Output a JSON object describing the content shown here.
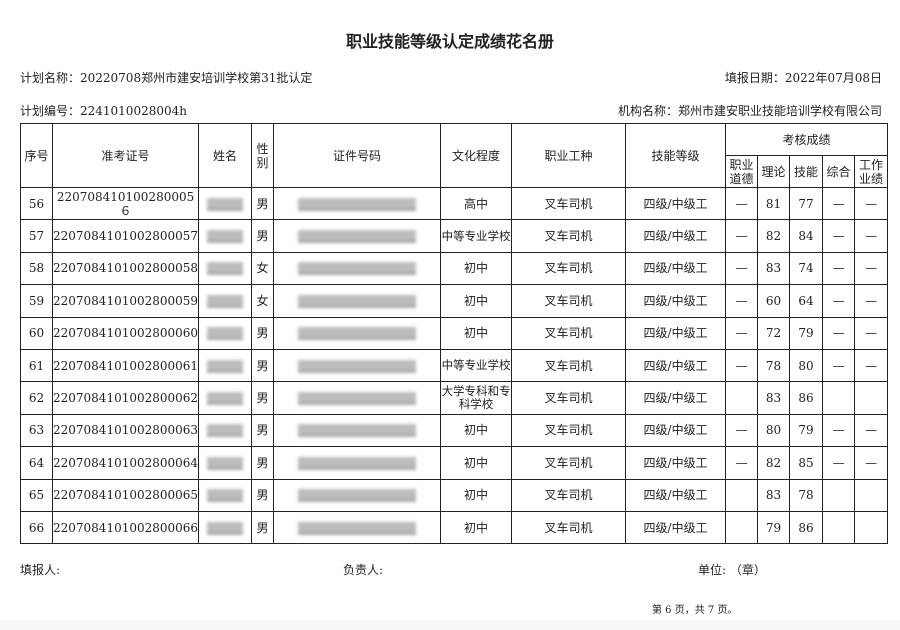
{
  "title": "职业技能等级认定成绩花名册",
  "plan_name": "计划名称：20220708郑州市建安培训学校第31批认定",
  "fill_date": "填报日期：2022年07月08日",
  "plan_number": "计划编号：2241010028004h",
  "org_name": "机构名称：郑州市建安职业技能培训学校有限公司",
  "table": {
    "headers": {
      "seq": "序号",
      "ticket": "准考证号",
      "name": "姓名",
      "gender": "性别",
      "id_number": "证件号码",
      "education": "文化程度",
      "occupation": "职业工种",
      "skill_level": "技能等级",
      "scores": "考核成绩",
      "ethics": "职业道德",
      "theory": "理论",
      "skill": "技能",
      "overall": "综合",
      "performance": "工作业绩"
    },
    "rows": [
      {
        "seq": "56",
        "ticket": "220708410100280005６",
        "gender": "男",
        "education": "高中",
        "occupation": "叉车司机",
        "level": "四级/中级工",
        "ethics": "—",
        "theory": "81",
        "skill": "77",
        "overall": "—",
        "performance": "—"
      },
      {
        "seq": "57",
        "ticket": "2207084101002800057",
        "gender": "男",
        "education": "中等专业学校",
        "occupation": "叉车司机",
        "level": "四级/中级工",
        "ethics": "—",
        "theory": "82",
        "skill": "84",
        "overall": "—",
        "performance": "—"
      },
      {
        "seq": "58",
        "ticket": "2207084101002800058",
        "gender": "女",
        "education": "初中",
        "occupation": "叉车司机",
        "level": "四级/中级工",
        "ethics": "—",
        "theory": "83",
        "skill": "74",
        "overall": "—",
        "performance": "—"
      },
      {
        "seq": "59",
        "ticket": "2207084101002800059",
        "gender": "女",
        "education": "初中",
        "occupation": "叉车司机",
        "level": "四级/中级工",
        "ethics": "—",
        "theory": "60",
        "skill": "64",
        "overall": "—",
        "performance": "—"
      },
      {
        "seq": "60",
        "ticket": "2207084101002800060",
        "gender": "男",
        "education": "初中",
        "occupation": "叉车司机",
        "level": "四级/中级工",
        "ethics": "—",
        "theory": "72",
        "skill": "79",
        "overall": "—",
        "performance": "—"
      },
      {
        "seq": "61",
        "ticket": "2207084101002800061",
        "gender": "男",
        "education": "中等专业学校",
        "occupation": "叉车司机",
        "level": "四级/中级工",
        "ethics": "—",
        "theory": "78",
        "skill": "80",
        "overall": "—",
        "performance": "—"
      },
      {
        "seq": "62",
        "ticket": "2207084101002800062",
        "gender": "男",
        "education": "大学专科和专科学校",
        "occupation": "叉车司机",
        "level": "四级/中级工",
        "ethics": "",
        "theory": "83",
        "skill": "86",
        "overall": "",
        "performance": ""
      },
      {
        "seq": "63",
        "ticket": "2207084101002800063",
        "gender": "男",
        "education": "初中",
        "occupation": "叉车司机",
        "level": "四级/中级工",
        "ethics": "—",
        "theory": "80",
        "skill": "79",
        "overall": "—",
        "performance": "—"
      },
      {
        "seq": "64",
        "ticket": "2207084101002800064",
        "gender": "男",
        "education": "初中",
        "occupation": "叉车司机",
        "level": "四级/中级工",
        "ethics": "—",
        "theory": "82",
        "skill": "85",
        "overall": "—",
        "performance": "—"
      },
      {
        "seq": "65",
        "ticket": "2207084101002800065",
        "gender": "男",
        "education": "初中",
        "occupation": "叉车司机",
        "level": "四级/中级工",
        "ethics": "",
        "theory": "83",
        "skill": "78",
        "overall": "",
        "performance": ""
      },
      {
        "seq": "66",
        "ticket": "2207084101002800066",
        "gender": "男",
        "education": "初中",
        "occupation": "叉车司机",
        "level": "四级/中级工",
        "ethics": "",
        "theory": "79",
        "skill": "86",
        "overall": "",
        "performance": ""
      }
    ]
  },
  "footer": {
    "filler": "填报人:",
    "responsible": "负责人:",
    "unit": "单位: （章）",
    "page": "第 6 页，共 7 页。"
  }
}
